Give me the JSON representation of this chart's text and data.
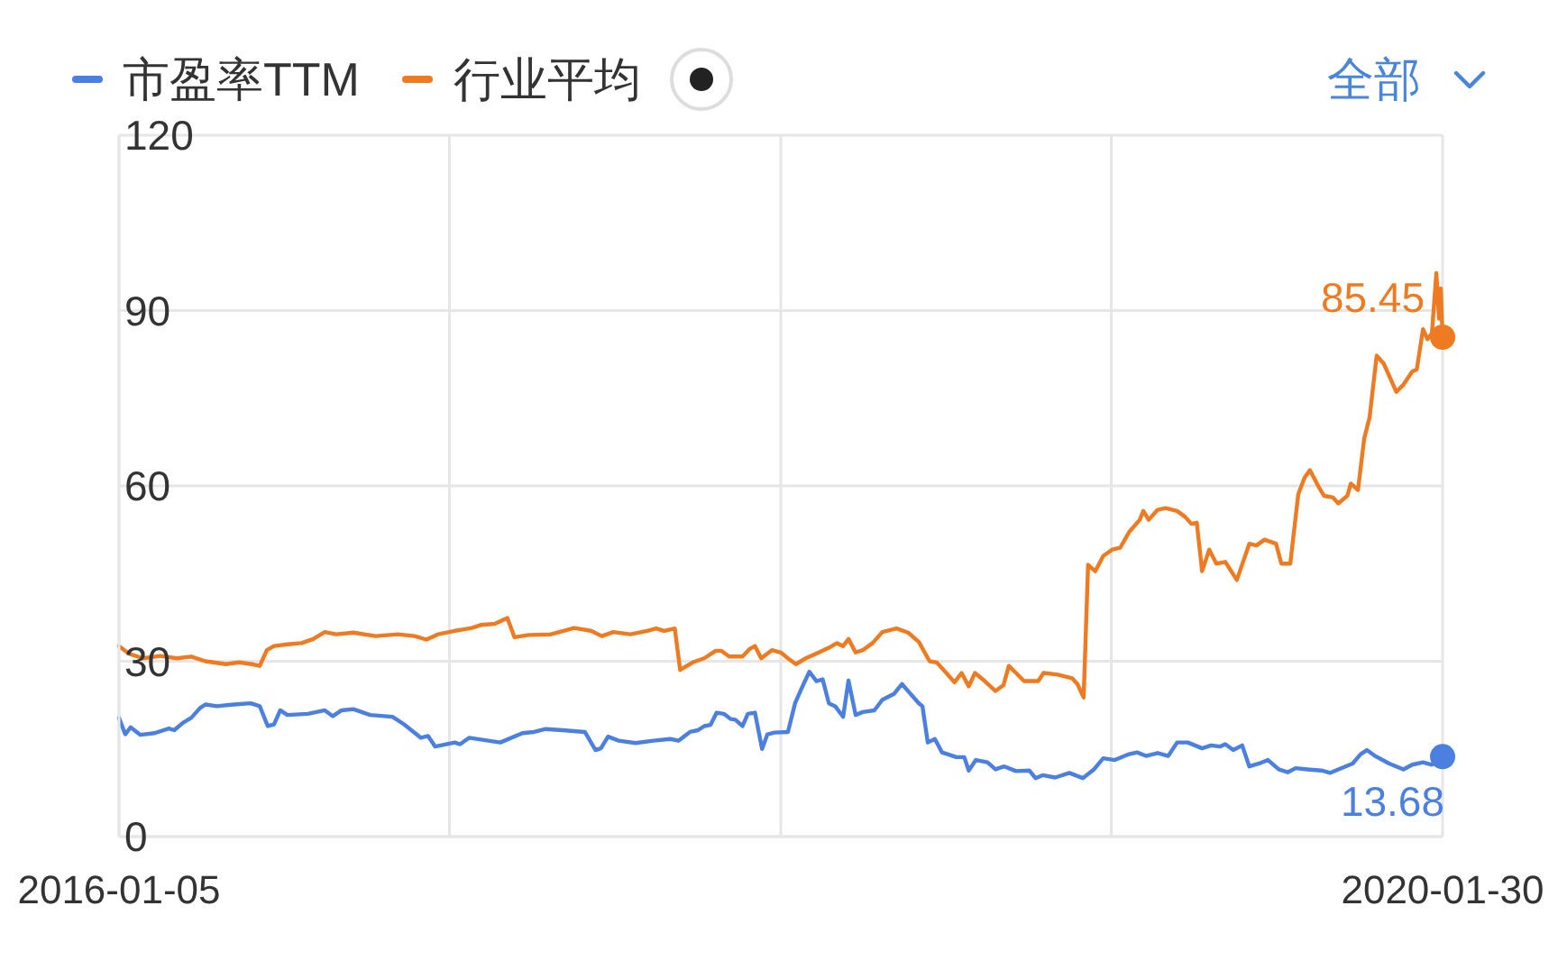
{
  "chart_data": {
    "type": "line",
    "xlim": [
      "2016-01-05",
      "2020-01-30"
    ],
    "xticks": [
      "2016-01-05",
      {
        "value": "2017-01-10",
        "label": null
      },
      {
        "value": "2018-01-17",
        "label": null
      },
      {
        "value": "2019-01-23",
        "label": null
      },
      "2020-01-30"
    ],
    "ylim": [
      0,
      120
    ],
    "yticks": [
      0,
      30,
      60,
      90,
      120
    ],
    "grid": true,
    "legend": "top left",
    "annotations": [
      "全部"
    ],
    "series": [
      {
        "name": "市盈率TTM",
        "color": "#4b80e0",
        "x": [
          "2016-01-05",
          "2016-01-12",
          "2016-01-18",
          "2016-01-29",
          "2016-02-14",
          "2016-03-01",
          "2016-03-07",
          "2016-03-17",
          "2016-03-26",
          "2016-04-05",
          "2016-04-11",
          "2016-04-24",
          "2016-05-13",
          "2016-06-01",
          "2016-06-11",
          "2016-06-20",
          "2016-06-27",
          "2016-07-04",
          "2016-07-12",
          "2016-08-04",
          "2016-08-23",
          "2016-09-01",
          "2016-09-11",
          "2016-09-24",
          "2016-10-13",
          "2016-11-07",
          "2016-11-20",
          "2016-12-09",
          "2016-12-17",
          "2016-12-25",
          "2017-01-16",
          "2017-01-22",
          "2017-02-01",
          "2017-03-08",
          "2017-04-02",
          "2017-04-15",
          "2017-04-28",
          "2017-05-17",
          "2017-06-11",
          "2017-06-23",
          "2017-06-29",
          "2017-07-07",
          "2017-07-19",
          "2017-08-07",
          "2017-08-27",
          "2017-09-15",
          "2017-09-24",
          "2017-10-07",
          "2017-10-16",
          "2017-10-23",
          "2017-10-30",
          "2017-11-06",
          "2017-11-14",
          "2017-11-22",
          "2017-11-27",
          "2017-12-05",
          "2017-12-11",
          "2017-12-19",
          "2017-12-27",
          "2018-01-02",
          "2018-01-10",
          "2018-01-25",
          "2018-02-02",
          "2018-02-08",
          "2018-02-18",
          "2018-02-26",
          "2018-03-05",
          "2018-03-12",
          "2018-03-19",
          "2018-03-28",
          "2018-04-03",
          "2018-04-11",
          "2018-04-19",
          "2018-05-02",
          "2018-05-11",
          "2018-05-24",
          "2018-06-02",
          "2018-06-10",
          "2018-06-21",
          "2018-06-25",
          "2018-07-01",
          "2018-07-09",
          "2018-07-17",
          "2018-08-02",
          "2018-08-11",
          "2018-08-16",
          "2018-08-24",
          "2018-09-06",
          "2018-09-15",
          "2018-09-25",
          "2018-10-08",
          "2018-10-23",
          "2018-10-30",
          "2018-11-07",
          "2018-11-21",
          "2018-12-07",
          "2018-12-22",
          "2019-01-03",
          "2019-01-14",
          "2019-01-27",
          "2019-02-12",
          "2019-02-21",
          "2019-03-03",
          "2019-03-16",
          "2019-03-28",
          "2019-04-07",
          "2019-04-19",
          "2019-05-05",
          "2019-05-15",
          "2019-05-25",
          "2019-05-31",
          "2019-06-09",
          "2019-06-19",
          "2019-06-27",
          "2019-07-08",
          "2019-07-18",
          "2019-07-30",
          "2019-08-09",
          "2019-08-18",
          "2019-08-31",
          "2019-09-16",
          "2019-09-26",
          "2019-10-05",
          "2019-10-21",
          "2019-10-30",
          "2019-11-06",
          "2019-11-15",
          "2019-12-01",
          "2019-12-17",
          "2019-12-27",
          "2020-01-08",
          "2020-01-18",
          "2020-01-30"
        ],
        "values": [
          20.3,
          17.5,
          18.7,
          17.4,
          17.7,
          18.5,
          18.2,
          19.5,
          20.3,
          22,
          22.6,
          22.3,
          22.6,
          22.8,
          22.3,
          18.9,
          19.2,
          21.6,
          20.8,
          21,
          21.6,
          20.6,
          21.6,
          21.8,
          20.8,
          20.5,
          19.2,
          16.9,
          17.2,
          15.4,
          16.1,
          15.8,
          16.9,
          16.1,
          17.7,
          17.9,
          18.4,
          18.2,
          17.9,
          14.8,
          15.1,
          17.1,
          16.4,
          16,
          16.4,
          16.7,
          16.4,
          17.9,
          18.2,
          18.9,
          19.1,
          21.2,
          21,
          20.1,
          20,
          18.9,
          21,
          21.2,
          15,
          17.5,
          17.8,
          17.9,
          22.8,
          24.9,
          28.2,
          26.6,
          26.9,
          22.8,
          22.3,
          20.5,
          26.7,
          20.8,
          21.3,
          21.6,
          23.4,
          24.4,
          26.1,
          24.7,
          22.8,
          22.3,
          16.1,
          16.7,
          14.4,
          13.6,
          13.6,
          11.3,
          13.1,
          12.7,
          11.5,
          12,
          11.2,
          11.3,
          10,
          10.5,
          10.1,
          10.9,
          10,
          11.4,
          13.4,
          13.1,
          14.1,
          14.4,
          13.8,
          14.3,
          13.8,
          16.1,
          16.1,
          15.1,
          15.6,
          15.4,
          15.8,
          14.8,
          15.6,
          12,
          12.5,
          13.1,
          11.5,
          11,
          11.7,
          11.5,
          11.3,
          10.9,
          11.5,
          12.5,
          14.1,
          14.8,
          13.8,
          12.5,
          11.5,
          12.3,
          12.7,
          12.3,
          13.68
        ],
        "value_labels": [
          null,
          null,
          null,
          null,
          null,
          null,
          null,
          null,
          null,
          null,
          null,
          null,
          null,
          null,
          null,
          null,
          null,
          null,
          null,
          null,
          null,
          null,
          null,
          null,
          null,
          null,
          null,
          null,
          null,
          null,
          null,
          null,
          null,
          null,
          null,
          null,
          null,
          null,
          null,
          null,
          null,
          null,
          null,
          null,
          null,
          null,
          null,
          null,
          null,
          null,
          null,
          null,
          null,
          null,
          null,
          null,
          null,
          null,
          null,
          null,
          null,
          null,
          null,
          null,
          null,
          null,
          null,
          null,
          null,
          null,
          null,
          null,
          null,
          null,
          null,
          null,
          null,
          null,
          null,
          null,
          null,
          null,
          null,
          null,
          null,
          null,
          null,
          null,
          null,
          null,
          null,
          null,
          null,
          null,
          null,
          null,
          null,
          null,
          null,
          null,
          null,
          null,
          null,
          null,
          null,
          null,
          null,
          null,
          null,
          null,
          null,
          null,
          null,
          null,
          null,
          null,
          null,
          null,
          null,
          null,
          null,
          null,
          null,
          null,
          null,
          null,
          null,
          null,
          null,
          null,
          null,
          null,
          "13.68"
        ]
      },
      {
        "name": "行业平均",
        "color": "#ee7b22",
        "x": [
          "2016-01-05",
          "2016-01-16",
          "2016-02-01",
          "2016-02-20",
          "2016-03-10",
          "2016-03-26",
          "2016-04-11",
          "2016-05-04",
          "2016-05-19",
          "2016-06-02",
          "2016-06-11",
          "2016-06-19",
          "2016-06-27",
          "2016-07-12",
          "2016-07-28",
          "2016-08-10",
          "2016-08-23",
          "2016-09-05",
          "2016-09-24",
          "2016-10-19",
          "2016-11-13",
          "2016-12-02",
          "2016-12-15",
          "2016-12-28",
          "2017-01-16",
          "2017-02-04",
          "2017-02-14",
          "2017-03-02",
          "2017-03-16",
          "2017-03-24",
          "2017-04-09",
          "2017-05-04",
          "2017-05-30",
          "2017-06-18",
          "2017-06-30",
          "2017-07-13",
          "2017-08-01",
          "2017-08-20",
          "2017-08-30",
          "2017-09-08",
          "2017-09-20",
          "2017-09-26",
          "2017-10-10",
          "2017-10-23",
          "2017-11-05",
          "2017-11-11",
          "2017-11-20",
          "2017-12-05",
          "2017-12-13",
          "2017-12-19",
          "2017-12-26",
          "2018-01-07",
          "2018-01-17",
          "2018-01-25",
          "2018-02-03",
          "2018-02-14",
          "2018-02-27",
          "2018-03-12",
          "2018-03-21",
          "2018-03-28",
          "2018-04-03",
          "2018-04-11",
          "2018-04-19",
          "2018-04-30",
          "2018-05-11",
          "2018-05-27",
          "2018-06-09",
          "2018-06-21",
          "2018-07-03",
          "2018-07-11",
          "2018-07-20",
          "2018-07-31",
          "2018-08-08",
          "2018-08-16",
          "2018-08-23",
          "2018-09-03",
          "2018-09-15",
          "2018-09-24",
          "2018-09-30",
          "2018-10-08",
          "2018-10-17",
          "2018-11-02",
          "2018-11-08",
          "2018-11-24",
          "2018-12-10",
          "2018-12-16",
          "2018-12-23",
          "2018-12-28",
          "2019-01-05",
          "2019-01-14",
          "2019-01-24",
          "2019-02-02",
          "2019-02-12",
          "2019-02-24",
          "2019-02-28",
          "2019-03-06",
          "2019-03-16",
          "2019-03-25",
          "2019-04-07",
          "2019-04-16",
          "2019-04-23",
          "2019-04-29",
          "2019-05-05",
          "2019-05-13",
          "2019-05-21",
          "2019-05-31",
          "2019-06-13",
          "2019-06-27",
          "2019-07-05",
          "2019-07-14",
          "2019-07-27",
          "2019-08-02",
          "2019-08-12",
          "2019-08-21",
          "2019-08-28",
          "2019-09-03",
          "2019-09-13",
          "2019-09-19",
          "2019-09-29",
          "2019-10-05",
          "2019-10-15",
          "2019-10-19",
          "2019-10-27",
          "2019-11-03",
          "2019-11-09",
          "2019-11-17",
          "2019-11-25",
          "2019-12-09",
          "2019-12-17",
          "2019-12-27",
          "2020-01-01",
          "2020-01-08",
          "2020-01-13",
          "2020-01-18",
          "2020-01-23",
          "2020-01-26",
          "2020-01-28",
          "2020-01-30"
        ],
        "values": [
          32.6,
          31.3,
          30.5,
          30.9,
          30.5,
          30.8,
          30,
          29.5,
          29.8,
          29.5,
          29.2,
          31.9,
          32.6,
          32.9,
          33.1,
          33.8,
          35,
          34.6,
          34.9,
          34.3,
          34.6,
          34.3,
          33.7,
          34.6,
          35.2,
          35.7,
          36.2,
          36.4,
          37.4,
          34.1,
          34.5,
          34.6,
          35.7,
          35.2,
          34.3,
          35,
          34.6,
          35.2,
          35.6,
          35.2,
          35.6,
          28.5,
          29.8,
          30.5,
          31.8,
          31.8,
          30.8,
          30.8,
          32.1,
          32.6,
          30.5,
          31.9,
          31.5,
          30.5,
          29.5,
          30.5,
          31.4,
          32.3,
          33.1,
          32.6,
          33.8,
          31.5,
          31.9,
          33.1,
          35,
          35.6,
          34.9,
          33.3,
          30,
          29.8,
          28.3,
          26.4,
          28,
          25.7,
          28,
          26.6,
          24.9,
          25.9,
          29.2,
          28,
          26.6,
          26.6,
          28,
          27.7,
          27.1,
          26.1,
          23.8,
          46.5,
          45.4,
          48,
          49.1,
          49.4,
          52.1,
          54.2,
          55.7,
          54.2,
          55.9,
          56.2,
          55.7,
          54.7,
          53.5,
          53.7,
          45.4,
          49.1,
          46.7,
          47,
          43.9,
          50.1,
          49.8,
          50.8,
          50.1,
          46.7,
          46.7,
          58.6,
          61.4,
          62.7,
          59.8,
          58.3,
          58,
          57,
          58.3,
          60.4,
          59.3,
          68.1,
          71.7,
          82.3,
          80.9,
          76.1,
          77.3,
          79.6,
          79.9,
          86.8,
          85.1,
          86.1,
          96.4,
          88.6,
          93.8,
          85.45
        ],
        "value_labels": [
          null,
          null,
          null,
          null,
          null,
          null,
          null,
          null,
          null,
          null,
          null,
          null,
          null,
          null,
          null,
          null,
          null,
          null,
          null,
          null,
          null,
          null,
          null,
          null,
          null,
          null,
          null,
          null,
          null,
          null,
          null,
          null,
          null,
          null,
          null,
          null,
          null,
          null,
          null,
          null,
          null,
          null,
          null,
          null,
          null,
          null,
          null,
          null,
          null,
          null,
          null,
          null,
          null,
          null,
          null,
          null,
          null,
          null,
          null,
          null,
          null,
          null,
          null,
          null,
          null,
          null,
          null,
          null,
          null,
          null,
          null,
          null,
          null,
          null,
          null,
          null,
          null,
          null,
          null,
          null,
          null,
          null,
          null,
          null,
          null,
          null,
          null,
          null,
          null,
          null,
          null,
          null,
          null,
          null,
          null,
          null,
          null,
          null,
          null,
          null,
          null,
          null,
          null,
          null,
          null,
          null,
          null,
          null,
          null,
          null,
          null,
          null,
          null,
          null,
          null,
          null,
          null,
          null,
          null,
          null,
          null,
          null,
          null,
          null,
          null,
          null,
          null,
          null,
          null,
          null,
          null,
          null,
          null,
          null,
          null,
          null,
          null,
          "85.45"
        ]
      }
    ]
  }
}
